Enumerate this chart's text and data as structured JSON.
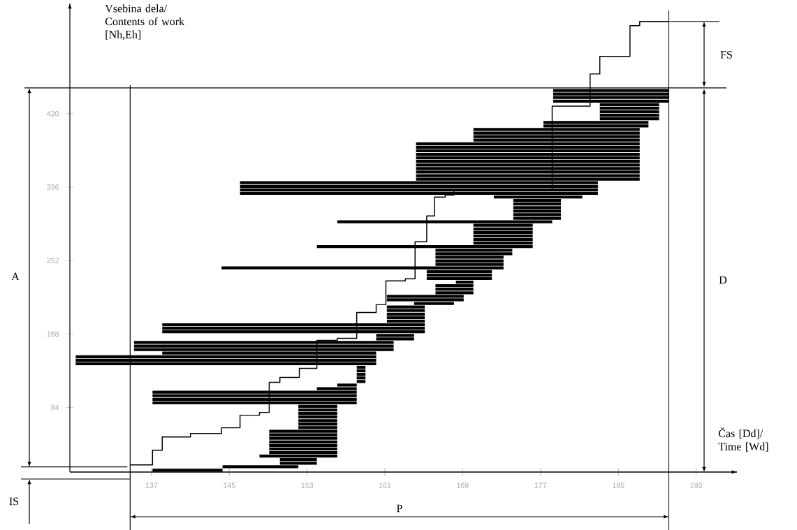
{
  "chart_data": [
    {
      "type": "bar",
      "orientation": "horizontal",
      "tick_labels": false,
      "categories": [
        null,
        null,
        null,
        null,
        null,
        null,
        null,
        null,
        null,
        null,
        null,
        null,
        null,
        null,
        null,
        null,
        null,
        null,
        null,
        null,
        null,
        null,
        null,
        null,
        null,
        null,
        null,
        null,
        null,
        null,
        null,
        null,
        null,
        null,
        null,
        null,
        null,
        null,
        null,
        null,
        null,
        null,
        null,
        null,
        null,
        null,
        null,
        null,
        null,
        null,
        null,
        null,
        null,
        null,
        null,
        null,
        null,
        null,
        null,
        null,
        null,
        null,
        null,
        null,
        null,
        null,
        null,
        null,
        null,
        null,
        null,
        null,
        null,
        null,
        null,
        null,
        null,
        null,
        null,
        null,
        null,
        null,
        null,
        null,
        null,
        null,
        null,
        null,
        null,
        null,
        null,
        null,
        null,
        null,
        null,
        null,
        null,
        null,
        null,
        null,
        null,
        null,
        null,
        null,
        null,
        null,
        null,
        null
      ],
      "xlim": [
        128.6,
        197.2
      ],
      "xticks": [
        137,
        145,
        153,
        161,
        169,
        177,
        185,
        193
      ],
      "series": [
        {
          "color": "#000000",
          "base": [
            178.3,
            178.3,
            178.3,
            178.3,
            183.1,
            183.1,
            183.1,
            183.1,
            183.1,
            177.3,
            177.3,
            170.1,
            170.1,
            170.1,
            170.1,
            164.2,
            164.2,
            164.2,
            164.2,
            164.2,
            164.2,
            164.2,
            164.2,
            164.2,
            164.2,
            164.2,
            146.1,
            146.1,
            146.1,
            146.1,
            172.2,
            174.2,
            174.2,
            174.2,
            174.2,
            174.2,
            174.2,
            156.1,
            170.1,
            170.1,
            170.1,
            170.1,
            170.1,
            170.1,
            154.0,
            166.2,
            166.2,
            166.2,
            166.2,
            166.2,
            144.2,
            165.3,
            165.3,
            165.3,
            168.3,
            166.2,
            166.2,
            166.2,
            161.2,
            161.2,
            164.0,
            161.2,
            161.2,
            161.2,
            161.2,
            161.2,
            138.1,
            138.1,
            138.1,
            160.1,
            160.1,
            135.2,
            135.2,
            135.2,
            138.1,
            129.2,
            129.2,
            129.2,
            158.1,
            158.1,
            158.1,
            158.1,
            158.1,
            156.1,
            154.0,
            137.1,
            137.1,
            137.1,
            137.1,
            152.1,
            152.1,
            152.1,
            152.1,
            152.1,
            152.1,
            152.1,
            149.1,
            149.1,
            149.1,
            149.1,
            149.1,
            149.1,
            149.1,
            148.1,
            150.2,
            150.2,
            144.3,
            137.1
          ],
          "values": [
            11.9,
            11.9,
            11.9,
            11.9,
            6.1,
            6.1,
            6.1,
            6.1,
            6.1,
            10.8,
            10.8,
            17.1,
            17.1,
            17.1,
            17.1,
            23.0,
            23.0,
            23.0,
            23.0,
            23.0,
            23.0,
            23.0,
            23.0,
            23.0,
            23.0,
            23.0,
            36.8,
            36.8,
            36.8,
            36.8,
            9.1,
            4.9,
            4.9,
            4.9,
            4.9,
            4.9,
            4.9,
            22.1,
            6.1,
            6.1,
            6.1,
            6.1,
            6.1,
            6.1,
            22.2,
            7.9,
            7.9,
            7.0,
            7.0,
            7.0,
            29.0,
            6.7,
            6.7,
            6.7,
            1.8,
            3.9,
            3.9,
            3.9,
            7.9,
            7.9,
            4.1,
            3.9,
            3.9,
            3.9,
            3.9,
            3.9,
            27.0,
            27.0,
            27.0,
            3.9,
            3.9,
            26.7,
            26.7,
            26.7,
            22.0,
            30.9,
            30.9,
            30.9,
            0.9,
            0.9,
            0.9,
            0.9,
            0.9,
            2.0,
            4.1,
            21.0,
            21.0,
            21.0,
            21.0,
            4.0,
            4.0,
            4.0,
            4.0,
            4.0,
            4.0,
            4.0,
            7.0,
            7.0,
            7.0,
            7.0,
            7.0,
            7.0,
            7.0,
            8.0,
            3.8,
            3.8,
            7.8,
            7.2
          ]
        }
      ]
    },
    {
      "type": "step",
      "xlabel": "Čas [Dd]/ Time [Wd]",
      "ylabel": "Vsebina dela/ Contents of work [Nh,Eh]",
      "xlim": [
        128.6,
        197.2
      ],
      "xticks": [
        137,
        145,
        153,
        161,
        169,
        177,
        185,
        193
      ],
      "ylim": [
        10,
        546
      ],
      "yticks": [
        84,
        168,
        252,
        336,
        420
      ],
      "series": [
        {
          "color": "#000000",
          "x": [
            134.8,
            137.1,
            138.1,
            141.0,
            144.2,
            146.1,
            148.1,
            149.1,
            150.2,
            152.2,
            154.0,
            156.1,
            158.1,
            160.1,
            161.1,
            163.1,
            164.1,
            165.3,
            166.1,
            167.2,
            168.1,
            178.2,
            182.1,
            183.1,
            186.2,
            187.2,
            190.2
          ],
          "values": [
            18.2,
            35.0,
            50.2,
            54.2,
            60.6,
            75.0,
            78.2,
            112.6,
            118.2,
            128.6,
            160.6,
            163.0,
            192.6,
            201.4,
            228.6,
            231.0,
            273.4,
            303.0,
            324.6,
            327.0,
            332.6,
            428.6,
            465.4,
            485.4,
            520.6,
            525.4,
            525.4
          ]
        }
      ],
      "ref_lines": [
        {
          "axis": "x",
          "value": 134.8
        },
        {
          "axis": "x",
          "value": 190.2
        },
        {
          "axis": "y",
          "value": 449.4
        }
      ],
      "annotations": [
        "A",
        "D",
        "FS",
        "IS",
        "P"
      ]
    }
  ]
}
